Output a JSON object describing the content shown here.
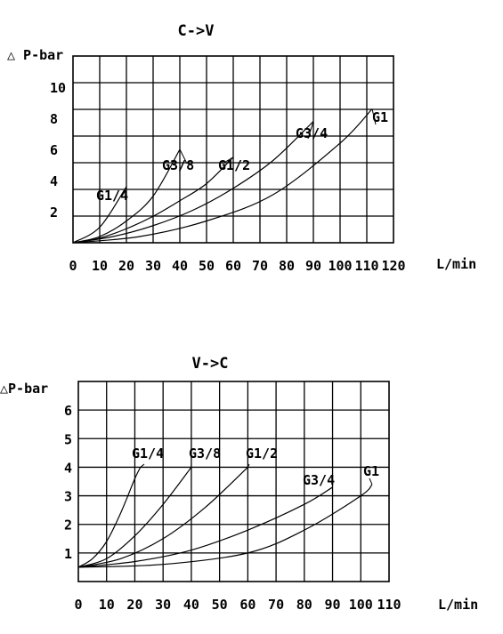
{
  "chart_data": [
    {
      "type": "line",
      "title": "C->V",
      "ylabel": "△ P-bar",
      "xlabel": "L/min",
      "xlim": [
        0,
        120
      ],
      "ylim": [
        0,
        12
      ],
      "grid": true,
      "x_ticks": [
        0,
        10,
        20,
        30,
        40,
        50,
        60,
        70,
        80,
        90,
        100,
        110,
        120
      ],
      "y_ticks": [
        2,
        4,
        6,
        8,
        10
      ],
      "series": [
        {
          "name": "G1/4",
          "x": [
            0,
            10,
            20
          ],
          "y": [
            0,
            1.0,
            3.6
          ]
        },
        {
          "name": "G3/8",
          "x": [
            0,
            10,
            20,
            30,
            40
          ],
          "y": [
            0,
            0.4,
            1.4,
            3.0,
            6.0
          ]
        },
        {
          "name": "G1/2",
          "x": [
            0,
            10,
            20,
            30,
            40,
            50,
            60
          ],
          "y": [
            0,
            0.3,
            0.9,
            1.7,
            2.7,
            3.8,
            5.5
          ]
        },
        {
          "name": "G3/4",
          "x": [
            0,
            15,
            30,
            45,
            60,
            75,
            90
          ],
          "y": [
            0,
            0.4,
            1.1,
            2.1,
            3.5,
            5.3,
            7.8
          ]
        },
        {
          "name": "G1",
          "x": [
            0,
            25,
            50,
            75,
            100,
            112
          ],
          "y": [
            0,
            0.4,
            1.4,
            3.1,
            6.4,
            8.6
          ]
        }
      ]
    },
    {
      "type": "line",
      "title": "V->C",
      "ylabel": "△P-bar",
      "xlabel": "L/min",
      "xlim": [
        0,
        110
      ],
      "ylim": [
        0,
        7
      ],
      "grid": true,
      "x_ticks": [
        0,
        10,
        20,
        30,
        40,
        50,
        60,
        70,
        80,
        90,
        100,
        110
      ],
      "y_ticks": [
        1,
        2,
        3,
        4,
        5,
        6
      ],
      "series": [
        {
          "name": "G1/4",
          "x": [
            0,
            5,
            10,
            15,
            20,
            22
          ],
          "y": [
            0.5,
            0.8,
            1.4,
            2.4,
            3.6,
            4.0
          ]
        },
        {
          "name": "G3/8",
          "x": [
            0,
            10,
            20,
            30,
            40
          ],
          "y": [
            0.5,
            0.8,
            1.6,
            2.7,
            4.0
          ]
        },
        {
          "name": "G1/2",
          "x": [
            0,
            15,
            30,
            45,
            60
          ],
          "y": [
            0.5,
            0.8,
            1.5,
            2.6,
            4.0
          ]
        },
        {
          "name": "G3/4",
          "x": [
            0,
            20,
            40,
            60,
            80,
            90
          ],
          "y": [
            0.5,
            0.7,
            1.1,
            1.8,
            2.7,
            3.3
          ]
        },
        {
          "name": "G1",
          "x": [
            0,
            30,
            60,
            80,
            100,
            104
          ],
          "y": [
            0.5,
            0.6,
            1.0,
            1.8,
            3.0,
            3.4
          ]
        }
      ]
    }
  ]
}
